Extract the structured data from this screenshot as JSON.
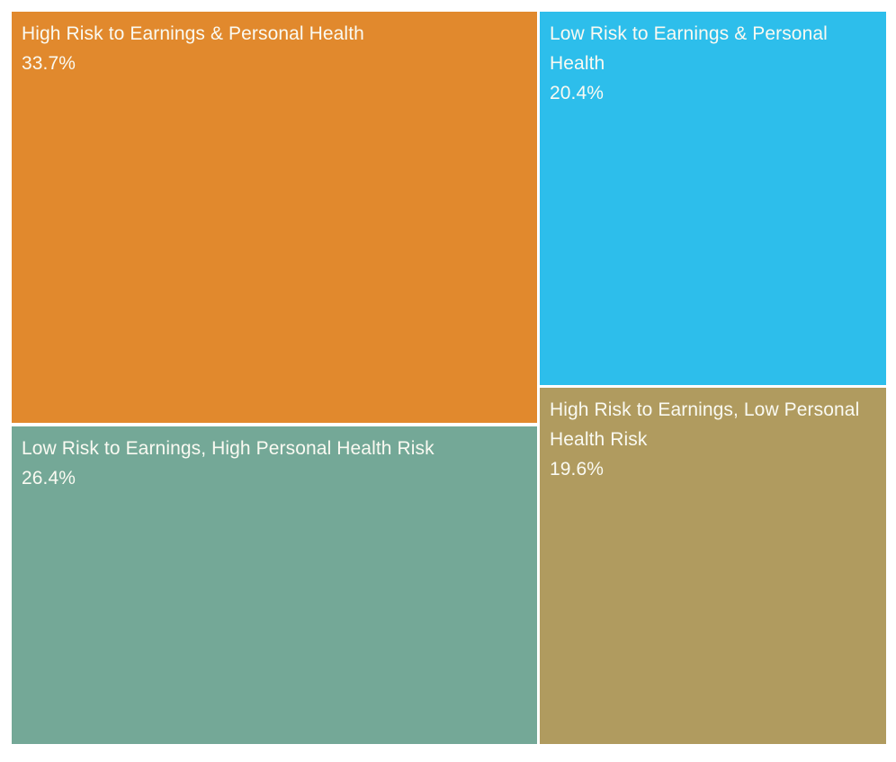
{
  "chart_data": {
    "type": "treemap",
    "title": "",
    "legend": "none",
    "background": "#FFFFFF",
    "text_color": "#FAFAF2",
    "items": [
      {
        "label": "High Risk to Earnings & Personal Health",
        "value": 33.7,
        "value_label": "33.7%",
        "color": "#E1892D"
      },
      {
        "label": "Low Risk to Earnings & Personal Health",
        "value": 20.4,
        "value_label": "20.4%",
        "color": "#2DBEEB"
      },
      {
        "label": "Low Risk to Earnings, High Personal Health Risk",
        "value": 26.4,
        "value_label": "26.4%",
        "color": "#74A897"
      },
      {
        "label": "High Risk to Earnings, Low Personal Health Risk",
        "value": 19.6,
        "value_label": "19.6%",
        "color": "#B09B5F"
      }
    ]
  }
}
